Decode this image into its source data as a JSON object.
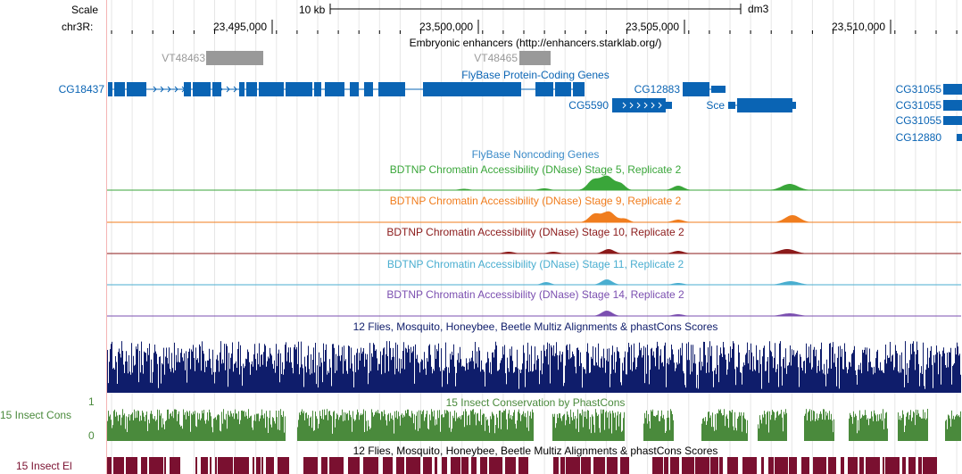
{
  "ruler": {
    "scale_label": "Scale",
    "chrom_label": "chr3R:",
    "scale_bar_label": "10 kb",
    "assembly": "dm3",
    "positions": [
      "23,495,000",
      "23,500,000",
      "23,505,000",
      "23,510,000"
    ]
  },
  "tracks": {
    "enhancers": {
      "title": "Embryonic enhancers (http://enhancers.starklab.org/)",
      "items": [
        "VT48463",
        "VT48465"
      ]
    },
    "flybase_coding": {
      "title": "FlyBase Protein-Coding Genes",
      "genes": [
        "CG18437",
        "CG12883",
        "CG5590",
        "Sce",
        "CG31055",
        "CG31055",
        "CG31055",
        "CG12880"
      ]
    },
    "flybase_noncoding": {
      "title": "FlyBase Noncoding Genes"
    },
    "dnase": [
      {
        "title": "BDTNP Chromatin Accessibility (DNase) Stage 5, Replicate 2",
        "color": "#3aa63a"
      },
      {
        "title": "BDTNP Chromatin Accessibility (DNase) Stage 9, Replicate 2",
        "color": "#f07d1e"
      },
      {
        "title": "BDTNP Chromatin Accessibility (DNase) Stage 10, Replicate 2",
        "color": "#8b1a1a"
      },
      {
        "title": "BDTNP Chromatin Accessibility (DNase) Stage 11, Replicate 2",
        "color": "#4aaed0"
      },
      {
        "title": "BDTNP Chromatin Accessibility (DNase) Stage 14, Replicate 2",
        "color": "#7b4fb0"
      }
    ],
    "multiz": {
      "title": "12 Flies, Mosquito, Honeybee, Beetle Multiz Alignments & phastCons Scores",
      "color": "#0f1d6b"
    },
    "phastcons": {
      "title": "15 Insect Conservation by PhastCons",
      "side_label": "15 Insect Cons",
      "axis_max": "1",
      "axis_min": "0",
      "color": "#4a8a3c"
    },
    "elements": {
      "title": "12 Flies, Mosquito, Honeybee, Beetle Multiz Alignments & phastCons Scores",
      "side_label": "15 Insect El",
      "color": "#7a1030"
    }
  },
  "colors": {
    "gene": "#0a64b4",
    "enhancer": "#999999",
    "ruler": "#000000",
    "grid": "#e6e6e6",
    "left_border": "#f4b4b4"
  }
}
